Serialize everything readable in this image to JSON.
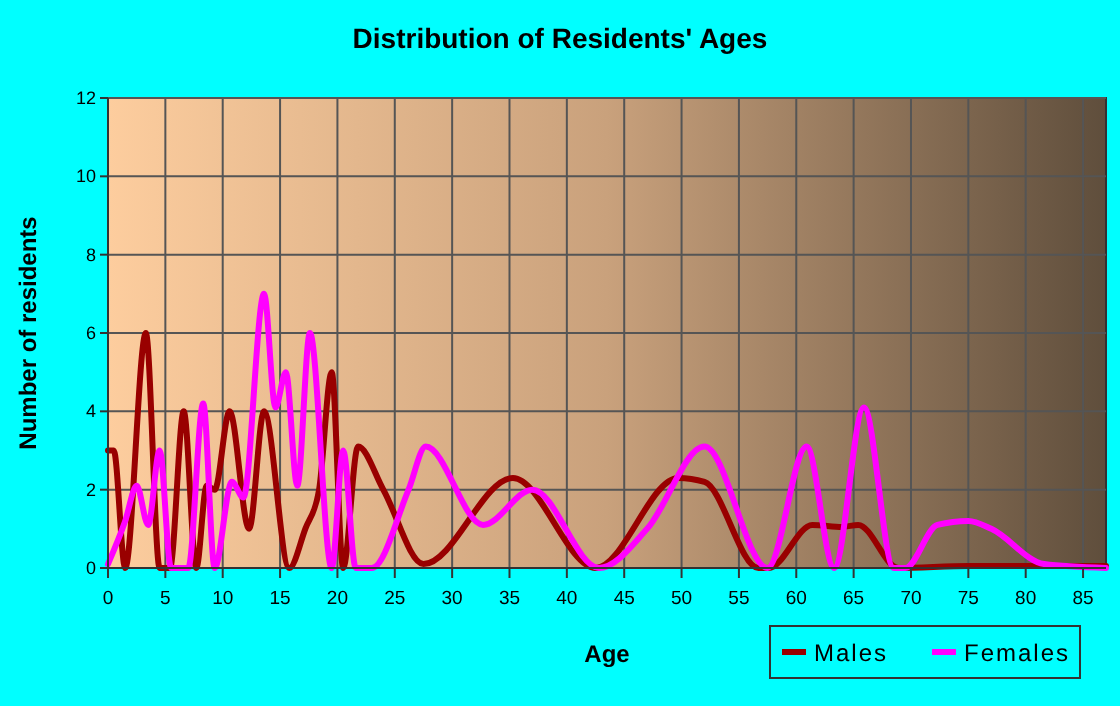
{
  "chart_data": {
    "type": "line",
    "title": "Distribution of Residents' Ages",
    "xlabel": "Age",
    "ylabel": "Number of residents",
    "xlim": [
      0,
      87
    ],
    "ylim": [
      0,
      12
    ],
    "xticks": [
      0,
      5,
      10,
      15,
      20,
      25,
      30,
      35,
      40,
      45,
      50,
      55,
      60,
      65,
      70,
      75,
      80,
      85
    ],
    "yticks": [
      0,
      2,
      4,
      6,
      8,
      10,
      12
    ],
    "grid": true,
    "legend": "bottom right",
    "marker": "none",
    "line_style": "solid",
    "series": [
      {
        "name": "Males",
        "color": "#990000",
        "x": [
          0,
          0.5,
          1.5,
          3.3,
          4.5,
          5.4,
          6.6,
          7.7,
          8.6,
          9.3,
          10.6,
          12.3,
          13.6,
          15.8,
          17.2,
          18.4,
          19.5,
          20.5,
          21.8,
          24,
          27.5,
          35.3,
          42.5,
          49.7,
          52,
          56.7,
          57.6,
          61.4,
          64,
          65.4,
          68.9,
          75,
          87
        ],
        "values": [
          3,
          3,
          0,
          6,
          0,
          0,
          4,
          0,
          2.1,
          2,
          4,
          1,
          4,
          0,
          1,
          2,
          5,
          0,
          3.1,
          2,
          0.1,
          2.3,
          0,
          2.3,
          2.2,
          0,
          0,
          1.1,
          1.05,
          1.1,
          0,
          0.05,
          0.05
        ]
      },
      {
        "name": "Females",
        "color": "#ff00ff",
        "x": [
          0,
          1.5,
          2.5,
          3.5,
          4.5,
          5.5,
          7,
          8.3,
          9.3,
          10.8,
          11.8,
          13.6,
          14.6,
          15.5,
          16.5,
          17.6,
          19.5,
          20.5,
          21.6,
          23,
          26.2,
          27.7,
          32.7,
          37,
          42.8,
          47,
          52,
          57.5,
          60.9,
          63.3,
          65.9,
          68.5,
          69.5,
          72.3,
          75,
          77,
          81.6,
          87
        ],
        "values": [
          0.1,
          1.2,
          2.1,
          1.1,
          3,
          0,
          0,
          4.2,
          0,
          2.2,
          1.8,
          7,
          4.1,
          5,
          2.1,
          6,
          0,
          3,
          0,
          0,
          2,
          3.1,
          1.1,
          2,
          0,
          1,
          3.1,
          0,
          3.1,
          0,
          4.1,
          0,
          0,
          1.1,
          1.2,
          1,
          0.1,
          0
        ]
      }
    ]
  }
}
